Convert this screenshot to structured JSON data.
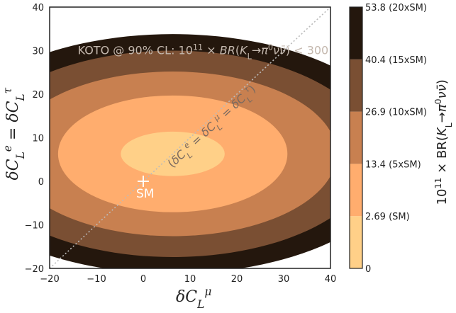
{
  "chart_data": {
    "type": "contour",
    "xlabel": "δC_L^μ",
    "ylabel": "δC_L^e = δC_L^τ",
    "xlim": [
      -20,
      40
    ],
    "ylim": [
      -20,
      40
    ],
    "x_ticks": [
      "−20",
      "−10",
      "0",
      "10",
      "20",
      "30",
      "40"
    ],
    "y_ticks": [
      "−20",
      "−10",
      "0",
      "10",
      "20",
      "30",
      "40"
    ],
    "colorbar": {
      "label": "10^11 × BR(K_L→π^0νν̄)",
      "levels": [
        0,
        2.69,
        13.4,
        26.9,
        40.4,
        53.8
      ],
      "tick_labels": [
        "0",
        "2.69 (SM)",
        "13.4 (5xSM)",
        "26.9 (10xSM)",
        "40.4 (15xSM)",
        "53.8 (20xSM)"
      ],
      "colors": [
        "#ffd088",
        "#ffad6e",
        "#c88050",
        "#7a4f33",
        "#24170d"
      ]
    },
    "contour_regions": [
      {
        "range": "2.69–13.4",
        "center": [
          6.3,
          6.3
        ],
        "x_extent": [
          -4.8,
          17.4
        ],
        "y_extent": [
          1.2,
          11.4
        ],
        "color": "#ffd088"
      },
      {
        "range": "13.4–26.9",
        "center": [
          6.3,
          6.3
        ],
        "x_extent": [
          -18.2,
          30.8
        ],
        "y_extent": [
          -7.1,
          19.7
        ],
        "color": "#ffad6e"
      },
      {
        "range": "26.9–40.4",
        "center": [
          6.3,
          6.3
        ],
        "x_extent": [
          -28.7,
          41.3
        ],
        "y_extent": [
          -12.6,
          25.2
        ],
        "color": "#c88050"
      },
      {
        "range": "40.4–53.8",
        "center": [
          6.3,
          6.3
        ],
        "x_extent": [
          -36.7,
          49.3
        ],
        "y_extent": [
          -17.4,
          30.0
        ],
        "color": "#7a4f33"
      }
    ],
    "background_color": "#24170d",
    "diagonal_line": {
      "from": [
        -20,
        -20
      ],
      "to": [
        40,
        40
      ],
      "label": "(δC_L^e = δC_L^μ = δC_L^τ)"
    },
    "sm_point": {
      "x": 0,
      "y": 0,
      "label": "SM"
    },
    "annotation": "KOTO @ 90% CL: 10^11 × BR(K_L→π^0νν̄) < 300"
  }
}
